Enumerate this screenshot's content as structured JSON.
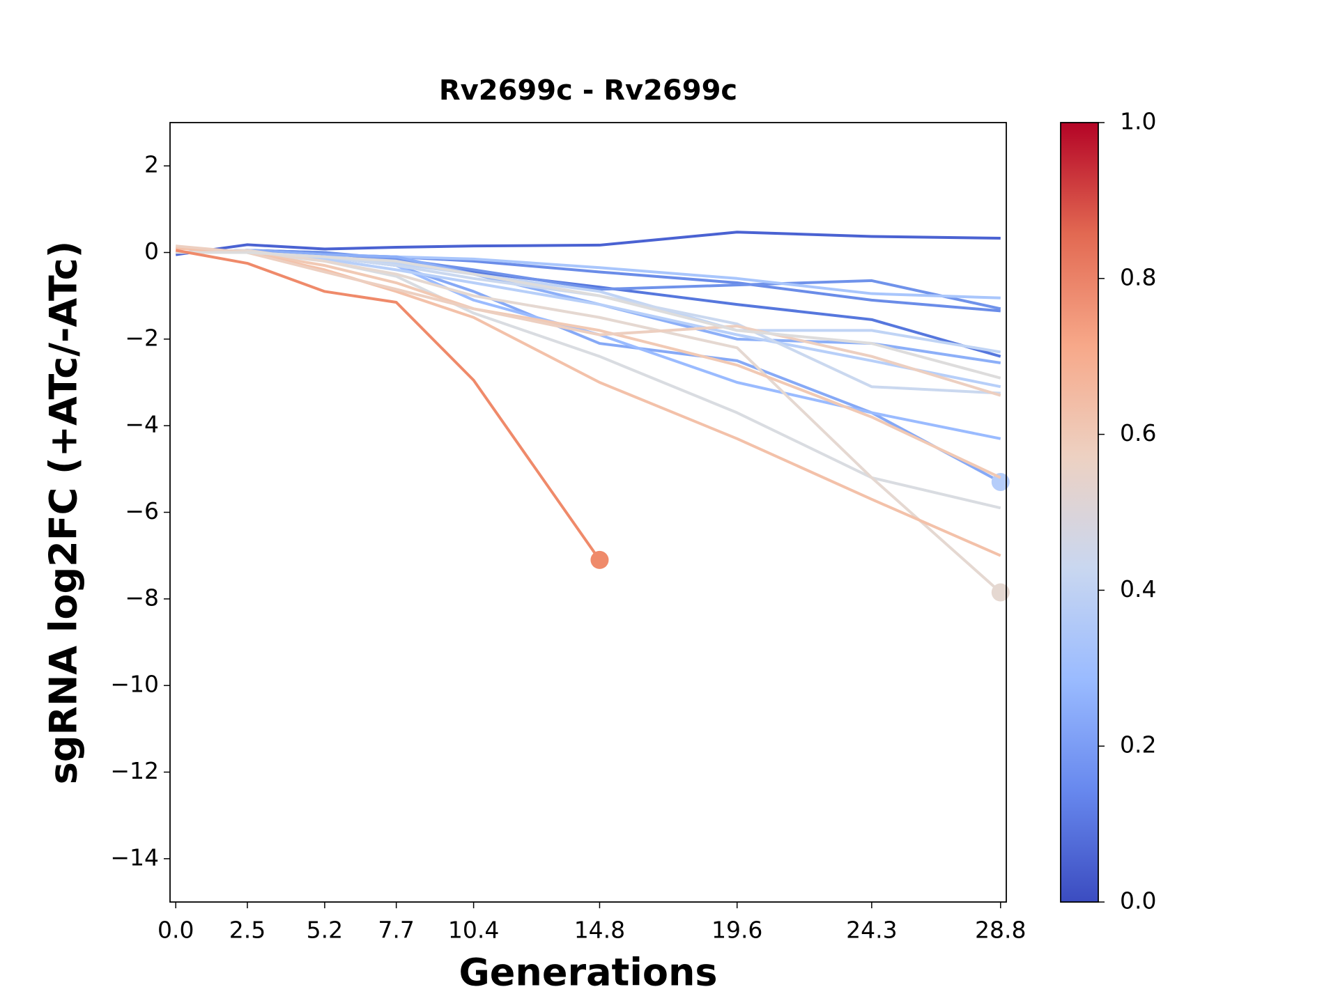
{
  "chart_data": {
    "type": "line",
    "title": "Rv2699c - Rv2699c",
    "xlabel": "Generations",
    "ylabel": "sgRNA log2FC (+ATc/-ATc)",
    "x": [
      0,
      2.5,
      5.2,
      7.7,
      10.4,
      14.8,
      19.6,
      24.3,
      28.8
    ],
    "xlim": [
      -0.2,
      29.0
    ],
    "xticks": [
      {
        "value": 0,
        "label": "0.0"
      },
      2.5,
      5.2,
      7.7,
      10.4,
      14.8,
      19.6,
      24.3,
      28.8
    ],
    "ylim": [
      -15,
      3
    ],
    "yticks": [
      {
        "value": -14,
        "label": "−14"
      },
      {
        "value": -12,
        "label": "−12"
      },
      {
        "value": -10,
        "label": "−10"
      },
      {
        "value": -8,
        "label": "−8"
      },
      {
        "value": -6,
        "label": "−6"
      },
      {
        "value": -4,
        "label": "−4"
      },
      {
        "value": -2,
        "label": "−2"
      },
      0,
      2
    ],
    "grid": false,
    "series": [
      {
        "color": "#4a62d2",
        "values": [
          -0.05,
          0.18,
          0.08,
          0.12,
          0.15,
          0.17,
          0.47,
          0.37,
          0.33
        ]
      },
      {
        "color": "#6a8ce8",
        "values": [
          0,
          0.05,
          -0.05,
          -0.1,
          -0.2,
          -0.45,
          -0.7,
          -1.1,
          -1.35
        ]
      },
      {
        "color": "#5677dd",
        "values": [
          0,
          0.05,
          0,
          -0.2,
          -0.45,
          -0.8,
          -1.2,
          -1.55,
          -2.4
        ]
      },
      {
        "color": "#6f92ea",
        "values": [
          0,
          0.05,
          0,
          -0.15,
          -0.4,
          -0.85,
          -0.75,
          -0.65,
          -1.3
        ]
      },
      {
        "color": "#a9c6fc",
        "values": [
          0,
          0.05,
          -0.05,
          -0.1,
          -0.15,
          -0.35,
          -0.6,
          -0.95,
          -1.05
        ]
      },
      {
        "color": "#8caff8",
        "values": [
          0,
          0.05,
          -0.05,
          -0.1,
          -0.5,
          -1.2,
          -2.0,
          -2.1,
          -2.55
        ]
      },
      {
        "color": "#86a9f6",
        "marker_color": "#b5cdfa",
        "end_marker": true,
        "values": [
          0,
          0.05,
          -0.1,
          -0.3,
          -0.9,
          -2.1,
          -2.5,
          -3.7,
          -5.3
        ]
      },
      {
        "color": "#9abbff",
        "values": [
          0,
          0,
          -0.1,
          -0.3,
          -1.1,
          -1.9,
          -3.0,
          -3.7,
          -4.3
        ]
      },
      {
        "color": "#b7cff9",
        "values": [
          0,
          0,
          -0.15,
          -0.4,
          -0.7,
          -1.2,
          -1.9,
          -2.5,
          -3.1
        ]
      },
      {
        "color": "#c0d4f5",
        "values": [
          0,
          0,
          -0.1,
          -0.25,
          -0.5,
          -0.9,
          -1.8,
          -1.8,
          -2.3
        ]
      },
      {
        "color": "#cad8ef",
        "values": [
          0,
          0,
          -0.1,
          -0.3,
          -0.6,
          -1.0,
          -1.65,
          -3.1,
          -3.25
        ]
      },
      {
        "color": "#d9dce1",
        "values": [
          0,
          0,
          -0.2,
          -0.55,
          -1.4,
          -2.4,
          -3.7,
          -5.2,
          -5.9
        ]
      },
      {
        "color": "#e5d8d1",
        "end_marker": true,
        "values": [
          0,
          0.05,
          -0.2,
          -0.5,
          -1.0,
          -1.5,
          -2.2,
          -5.2,
          -7.85
        ]
      },
      {
        "color": "#f1c9b4",
        "values": [
          0.1,
          0,
          -0.3,
          -0.7,
          -1.3,
          -1.8,
          -2.6,
          -3.8,
          -5.2
        ]
      },
      {
        "color": "#f3c1a9",
        "values": [
          0.1,
          0,
          -0.4,
          -0.9,
          -1.5,
          -3.0,
          -4.3,
          -5.7,
          -7.0
        ]
      },
      {
        "color": "#edcfc0",
        "values": [
          0.15,
          0,
          -0.45,
          -0.85,
          -1.3,
          -1.9,
          -1.7,
          -2.4,
          -3.3
        ]
      },
      {
        "color": "#dddcdc",
        "values": [
          0,
          0,
          -0.1,
          -0.2,
          -0.5,
          -1.0,
          -1.8,
          -2.1,
          -2.9
        ]
      },
      {
        "color": "#ef8a6a",
        "end_marker": true,
        "values": [
          0.05,
          -0.25,
          -0.9,
          -1.15,
          -2.95,
          -7.1,
          null,
          null,
          null
        ]
      }
    ],
    "colorbar": {
      "lim": [
        0,
        1
      ],
      "ticks": [
        {
          "value": 0,
          "label": "0.0"
        },
        {
          "value": 0.2,
          "label": "0.2"
        },
        {
          "value": 0.4,
          "label": "0.4"
        },
        {
          "value": 0.6,
          "label": "0.6"
        },
        {
          "value": 0.8,
          "label": "0.8"
        },
        {
          "value": 1,
          "label": "1.0"
        }
      ],
      "colors": [
        "#3b4cc0",
        "#6788ee",
        "#9abbff",
        "#c9d7f0",
        "#edd1c2",
        "#f7a889",
        "#e26952",
        "#b40426"
      ]
    }
  }
}
